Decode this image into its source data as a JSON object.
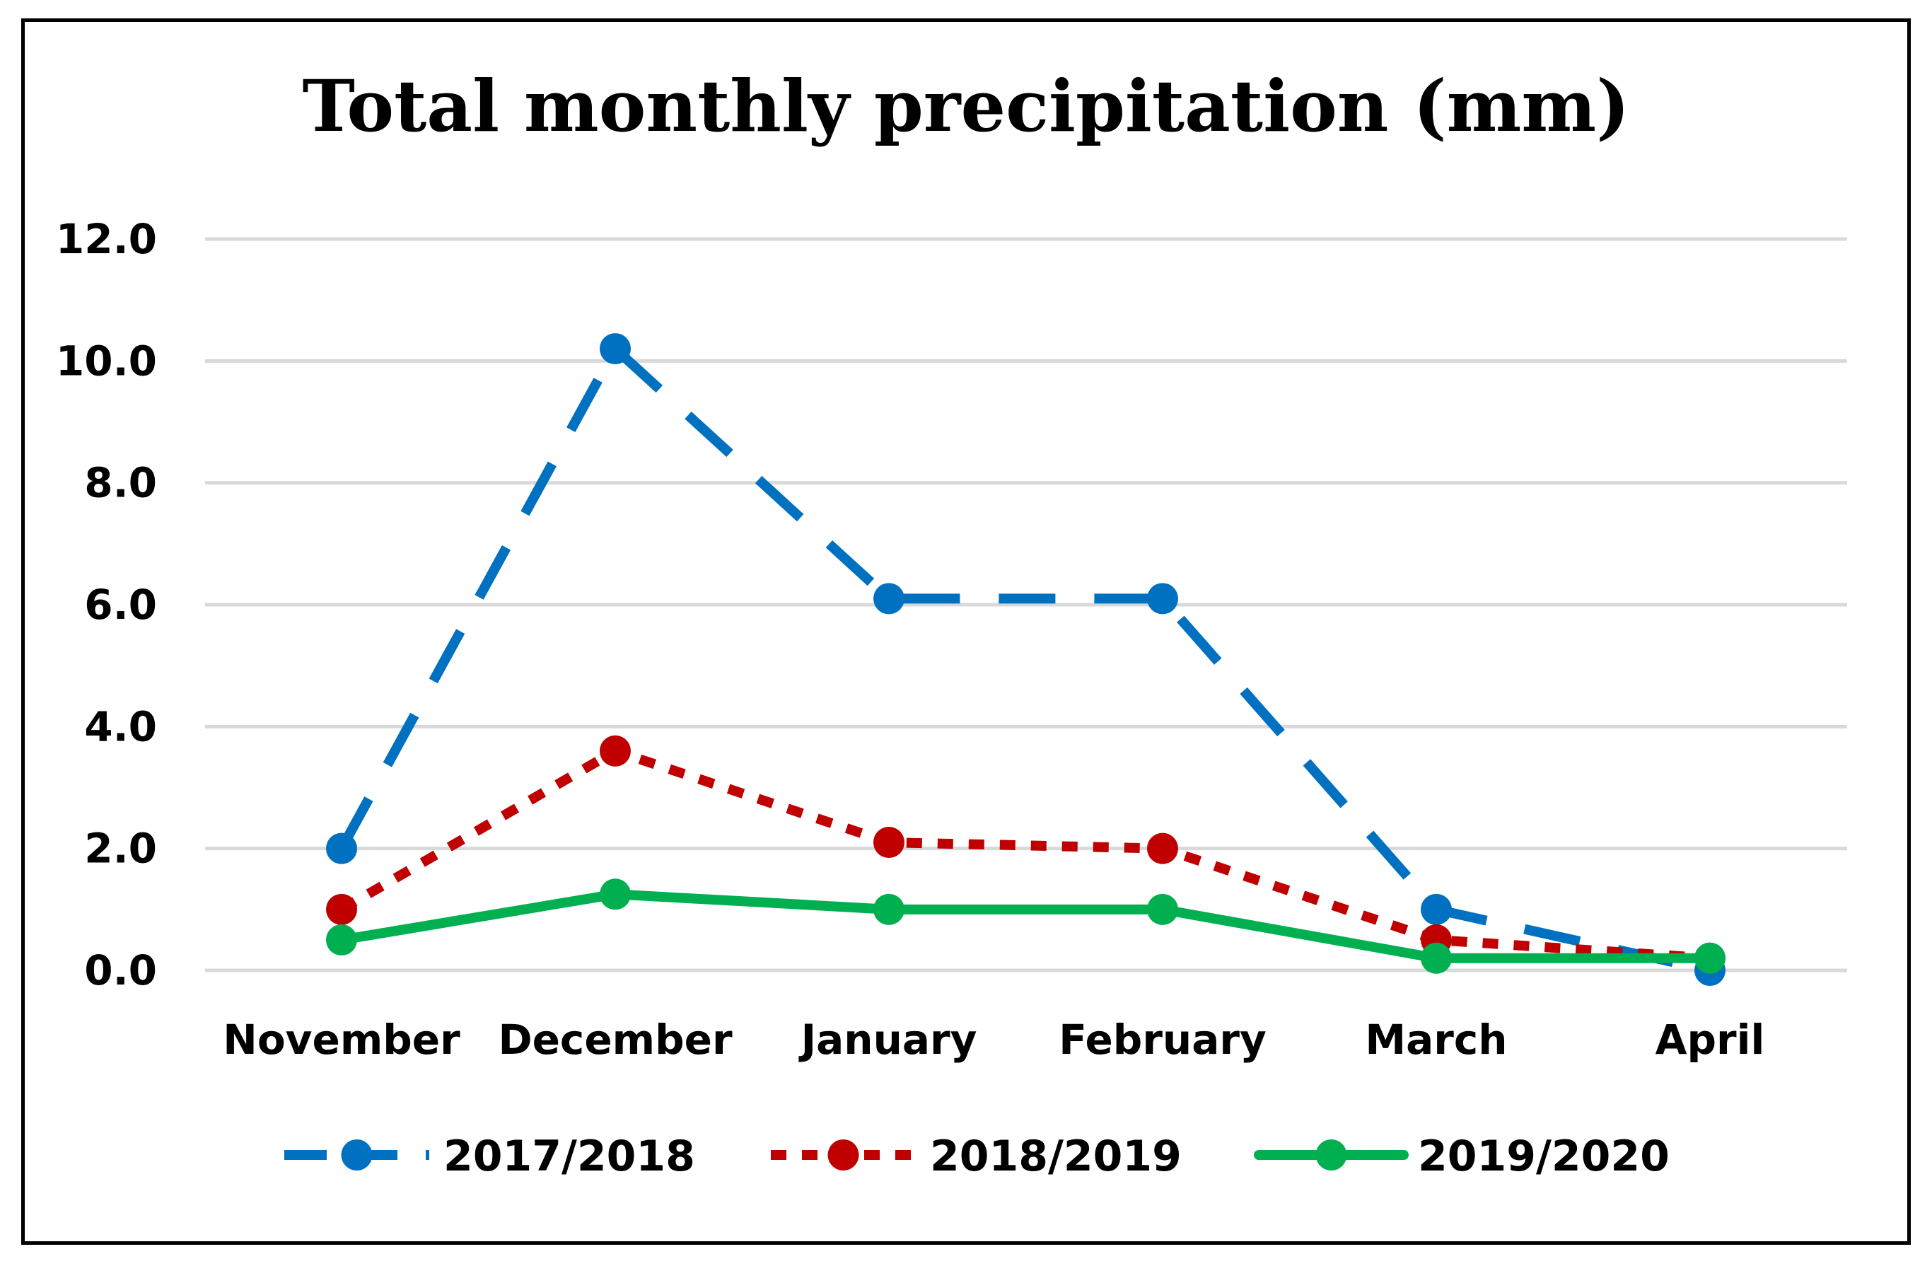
{
  "chart_data": {
    "type": "line",
    "title": "Total monthly precipitation (mm)",
    "xlabel": "",
    "ylabel": "",
    "categories": [
      "November",
      "December",
      "January",
      "February",
      "March",
      "April"
    ],
    "ylim": [
      0,
      12
    ],
    "yticks": [
      "0.0",
      "2.0",
      "4.0",
      "6.0",
      "8.0",
      "10.0",
      "12.0"
    ],
    "grid": "horizontal",
    "legend_position": "bottom",
    "series": [
      {
        "name": "2017/2018",
        "values": [
          2.0,
          10.2,
          6.1,
          6.1,
          1.0,
          0.0
        ],
        "color": "#0070C0",
        "style": "dashed"
      },
      {
        "name": "2018/2019",
        "values": [
          1.0,
          3.6,
          2.1,
          2.0,
          0.5,
          0.2
        ],
        "color": "#C00000",
        "style": "dotted"
      },
      {
        "name": "2019/2020",
        "values": [
          0.5,
          1.25,
          1.0,
          1.0,
          0.2,
          0.2
        ],
        "color": "#00B050",
        "style": "solid"
      }
    ]
  }
}
